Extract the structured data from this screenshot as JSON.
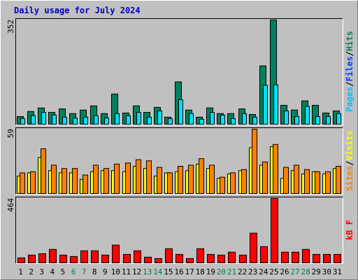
{
  "title": "Daily usage for July 2024",
  "separator": "/",
  "chart_data": [
    {
      "type": "bar",
      "ylim": [
        0,
        352
      ],
      "yticks": [
        352
      ],
      "pages_label": {
        "name": "Pages",
        "color": "#00c0ff"
      },
      "series": [
        {
          "name": "Hits",
          "color": "#00805c",
          "values": [
            26,
            43,
            55,
            40,
            52,
            36,
            48,
            62,
            36,
            102,
            38,
            62,
            40,
            57,
            24,
            143,
            48,
            24,
            55,
            36,
            36,
            52,
            33,
            197,
            352,
            64,
            48,
            79,
            64,
            38,
            45
          ]
        },
        {
          "name": "Files",
          "color": "#00e0ff",
          "values": [
            19,
            29,
            40,
            31,
            24,
            21,
            24,
            29,
            21,
            36,
            29,
            40,
            24,
            45,
            19,
            83,
            36,
            17,
            40,
            31,
            19,
            36,
            24,
            131,
            133,
            45,
            26,
            60,
            26,
            26,
            36
          ]
        }
      ]
    },
    {
      "type": "bar",
      "ylim": [
        0,
        59
      ],
      "yticks": [
        59
      ],
      "series": [
        {
          "name": "Visits",
          "color": "#ffff00",
          "values": [
            16,
            19,
            33,
            21,
            19,
            19,
            13,
            20,
            21,
            21,
            20,
            25,
            23,
            16,
            19,
            20,
            21,
            27,
            23,
            14,
            18,
            21,
            42,
            26,
            43,
            14,
            21,
            18,
            20,
            18,
            23
          ]
        },
        {
          "name": "Sites",
          "color": "#ff8000",
          "values": [
            19,
            20,
            41,
            26,
            23,
            23,
            17,
            26,
            23,
            27,
            28,
            31,
            30,
            24,
            19,
            25,
            26,
            32,
            26,
            15,
            19,
            22,
            59,
            29,
            45,
            24,
            26,
            22,
            20,
            20,
            25
          ]
        }
      ]
    },
    {
      "type": "bar",
      "ylim": [
        0,
        464
      ],
      "yticks": [
        464
      ],
      "categories": [
        "1",
        "2",
        "3",
        "4",
        "5",
        "6",
        "7",
        "8",
        "9",
        "10",
        "11",
        "12",
        "13",
        "14",
        "15",
        "16",
        "17",
        "18",
        "19",
        "20",
        "21",
        "22",
        "23",
        "24",
        "25",
        "26",
        "27",
        "28",
        "29",
        "30",
        "31"
      ],
      "label_colors": [
        "#000",
        "#000",
        "#000",
        "#000",
        "#000",
        "#008040",
        "#008040",
        "#000",
        "#000",
        "#000",
        "#000",
        "#000",
        "#008040",
        "#008040",
        "#000",
        "#000",
        "#000",
        "#000",
        "#000",
        "#008040",
        "#008040",
        "#000",
        "#000",
        "#000",
        "#000",
        "#000",
        "#008040",
        "#008040",
        "#000",
        "#000",
        "#000"
      ],
      "series": [
        {
          "name": "kB F",
          "color": "#ff0000",
          "values": [
            36,
            56,
            66,
            97,
            56,
            46,
            87,
            87,
            56,
            128,
            61,
            87,
            41,
            31,
            102,
            61,
            31,
            102,
            61,
            56,
            77,
            56,
            214,
            117,
            464,
            77,
            77,
            97,
            61,
            61,
            61
          ]
        }
      ]
    }
  ]
}
